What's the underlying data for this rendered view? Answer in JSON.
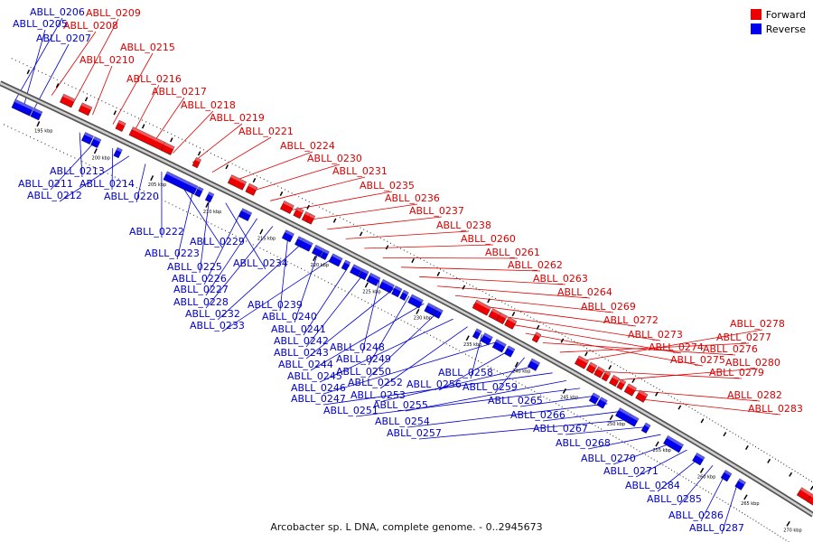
{
  "legend": [
    {
      "label": "Forward",
      "color": "#ee0000"
    },
    {
      "label": "Reverse",
      "color": "#0000ee"
    }
  ],
  "caption": "Arcobacter sp. L DNA, complete genome. - 0..2945673",
  "colors": {
    "forward": "#ee0000",
    "reverse": "#0000ee",
    "axis": "#888888",
    "label_forward": "#dd0000",
    "label_reverse": "#0000cc"
  },
  "axis": {
    "start_kbp": 195,
    "end_kbp": 270,
    "tick_step_kbp": 5
  },
  "forward_labels": [
    "ABLL_0208",
    "ABLL_0209",
    "ABLL_0210",
    "ABLL_0215",
    "ABLL_0216",
    "ABLL_0217",
    "ABLL_0218",
    "ABLL_0219",
    "ABLL_0221",
    "ABLL_0224",
    "ABLL_0230",
    "ABLL_0231",
    "ABLL_0235",
    "ABLL_0236",
    "ABLL_0237",
    "ABLL_0238",
    "ABLL_0260",
    "ABLL_0261",
    "ABLL_0262",
    "ABLL_0263",
    "ABLL_0264",
    "ABLL_0269",
    "ABLL_0272",
    "ABLL_0273",
    "ABLL_0274",
    "ABLL_0275",
    "ABLL_0276",
    "ABLL_0277",
    "ABLL_0278",
    "ABLL_0279",
    "ABLL_0280",
    "ABLL_0282",
    "ABLL_0283"
  ],
  "reverse_labels_top": [
    "ABLL_0206",
    "ABLL_0205",
    "ABLL_0207"
  ],
  "reverse_labels": [
    "ABLL_0213",
    "ABLL_0211",
    "ABLL_0214",
    "ABLL_0212",
    "ABLL_0220",
    "ABLL_0222",
    "ABLL_0229",
    "ABLL_0223",
    "ABLL_0225",
    "ABLL_0234",
    "ABLL_0226",
    "ABLL_0227",
    "ABLL_0228",
    "ABLL_0239",
    "ABLL_0232",
    "ABLL_0240",
    "ABLL_0233",
    "ABLL_0241",
    "ABLL_0242",
    "ABLL_0248",
    "ABLL_0243",
    "ABLL_0249",
    "ABLL_0244",
    "ABLL_0250",
    "ABLL_0245",
    "ABLL_0252",
    "ABLL_0258",
    "ABLL_0246",
    "ABLL_0256",
    "ABLL_0259",
    "ABLL_0253",
    "ABLL_0247",
    "ABLL_0255",
    "ABLL_0251",
    "ABLL_0265",
    "ABLL_0254",
    "ABLL_0266",
    "ABLL_0257",
    "ABLL_0267",
    "ABLL_0268",
    "ABLL_0270",
    "ABLL_0271",
    "ABLL_0284",
    "ABLL_0285",
    "ABLL_0286",
    "ABLL_0287"
  ]
}
